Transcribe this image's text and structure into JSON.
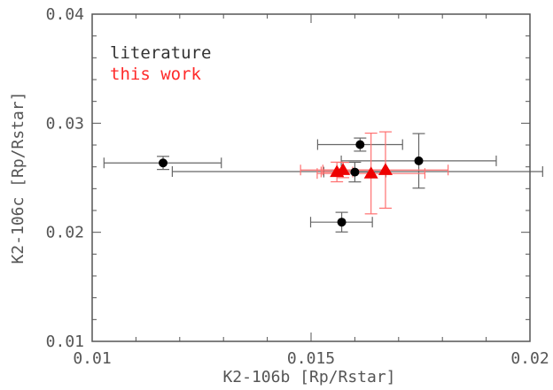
{
  "chart_data": {
    "type": "scatter",
    "xlabel": "K2-106b [Rp/Rstar]",
    "ylabel": "K2-106c [Rp/Rstar]",
    "xlim": [
      0.01,
      0.02
    ],
    "ylim": [
      0.01,
      0.04
    ],
    "x_ticks": [
      "0.01",
      "0.015",
      "0.02"
    ],
    "y_ticks": [
      "0.01",
      "0.02",
      "0.03",
      "0.04"
    ],
    "grid": false,
    "legend_position": "top-left",
    "legend": [
      {
        "label": "literature",
        "color": "#333333"
      },
      {
        "label": "this work",
        "color": "#ff2a2a"
      }
    ],
    "series": [
      {
        "name": "literature",
        "marker": "circle",
        "color": "#000000",
        "errcolor": "#666666",
        "points": [
          {
            "x": 0.01162,
            "y": 0.02636,
            "xerr": [
              0.00135,
              0.00133
            ],
            "yerr": [
              0.0006,
              0.0006
            ]
          },
          {
            "x": 0.0157,
            "y": 0.02093,
            "xerr": [
              0.00071,
              0.0007
            ],
            "yerr": [
              0.0009,
              0.0009
            ]
          },
          {
            "x": 0.016,
            "y": 0.02552,
            "xerr": [
              0.00071,
              0.00071
            ],
            "yerr": [
              0.0009,
              0.0009
            ]
          },
          {
            "x": 0.01612,
            "y": 0.02804,
            "xerr": [
              0.00097,
              0.00097
            ],
            "yerr": [
              0.0006,
              0.0006
            ]
          },
          {
            "x": 0.01746,
            "y": 0.02655,
            "xerr": [
              0.00177,
              0.00177
            ],
            "yerr": [
              0.0025,
              0.0025
            ]
          },
          {
            "x": 0.01606,
            "y": 0.02557,
            "xerr": [
              0.00423,
              0.00423
            ],
            "yerr": [
              0.0,
              0.0
            ]
          }
        ]
      },
      {
        "name": "this work",
        "marker": "triangle",
        "color": "#ee0000",
        "errcolor": "#ff7070",
        "points": [
          {
            "x": 0.01559,
            "y": 0.02553,
            "xerr": [
              0.00036,
              0.00036
            ],
            "yerr": [
              0.0009,
              0.0009
            ]
          },
          {
            "x": 0.01573,
            "y": 0.02571,
            "xerr": [
              0.00097,
              0.00097
            ],
            "yerr": [
              0.0007,
              0.0007
            ]
          },
          {
            "x": 0.01637,
            "y": 0.02539,
            "xerr": [
              0.00123,
              0.00123
            ],
            "yerr": [
              0.0037,
              0.0037
            ]
          },
          {
            "x": 0.0167,
            "y": 0.02571,
            "xerr": [
              0.00143,
              0.00143
            ],
            "yerr": [
              0.0035,
              0.0035
            ]
          }
        ]
      }
    ]
  }
}
